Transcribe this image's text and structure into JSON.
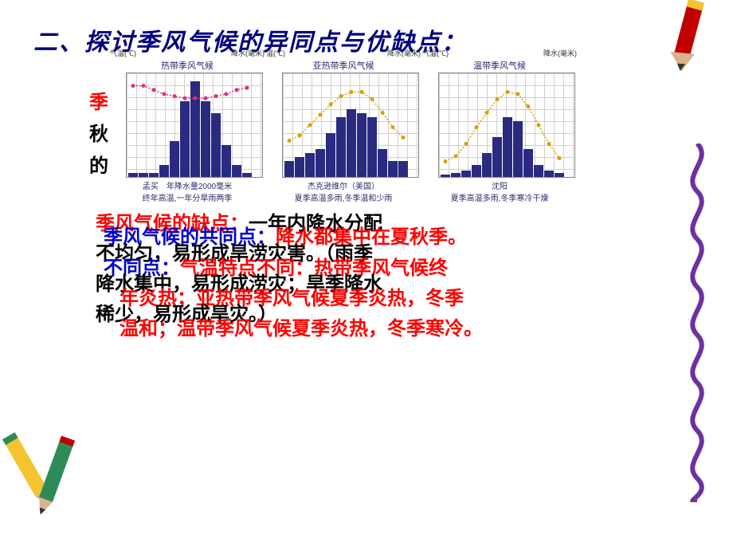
{
  "title": "二、探讨季风气候的异同点与优缺点：",
  "side_text": {
    "s1": "季",
    "s2": "秋",
    "s3": "的"
  },
  "charts": [
    {
      "title": "热带季风气候",
      "left_axis": "气温(℃)",
      "right_axis": "降水(毫米)",
      "location": "孟买",
      "caption": "年降水量2000毫米",
      "sub": "终年高温,一年分旱雨两季",
      "bars": [
        5,
        5,
        5,
        15,
        45,
        95,
        120,
        95,
        80,
        40,
        15,
        5
      ],
      "temp": [
        88,
        88,
        84,
        80,
        78,
        76,
        76,
        76,
        78,
        80,
        84,
        86
      ],
      "bar_color": "#2a2a80",
      "temp_color": "#d63384",
      "max_bar": 130
    },
    {
      "title": "亚热带季风气候",
      "left_axis": "温(℃)",
      "right_axis": "降水(毫米)",
      "location": "杰克逊维尔（美国）",
      "caption": "",
      "sub": "夏季高温多雨,冬季温和少雨",
      "bars": [
        20,
        25,
        30,
        35,
        55,
        75,
        85,
        80,
        75,
        35,
        20,
        20
      ],
      "temp": [
        35,
        40,
        50,
        60,
        70,
        78,
        82,
        82,
        75,
        62,
        48,
        38
      ],
      "bar_color": "#2a2a80",
      "temp_color": "#d6a100",
      "max_bar": 130
    },
    {
      "title": "温带季风气候",
      "left_axis": "气温(℃)",
      "right_axis": "降水(毫米)",
      "location": "沈阳",
      "caption": "",
      "sub": "夏季高温多雨,冬季寒冷干燥",
      "bars": [
        3,
        5,
        8,
        15,
        30,
        50,
        75,
        70,
        35,
        15,
        8,
        5
      ],
      "temp": [
        15,
        20,
        32,
        48,
        62,
        75,
        82,
        80,
        68,
        50,
        32,
        18
      ],
      "bar_color": "#2a2a80",
      "temp_color": "#d6a100",
      "max_bar": 130
    }
  ],
  "body": {
    "l1a": "季风气候的缺点：",
    "l1b": "一年内降水分配",
    "l2a": "季风气候的共同点：",
    "l2b": "降水都集中在夏秋季。",
    "l3": "不均匀，易形成旱涝灾害。（雨季",
    "l4a": "不同点：",
    "l4b": "气温特点不同：热带季风气候终",
    "l5": "降水集中，易形成涝灾；旱季降水",
    "l6": "年炎热；亚热带季风气候夏季炎热，冬季",
    "l7": "稀少，易形成旱灾。）",
    "l8": "温和；温带季风气候夏季炎热，冬季寒冷。"
  },
  "colors": {
    "title": "#000080",
    "red": "#ff0000",
    "blue": "#0000cc",
    "black": "#000000",
    "spiral": "#7030a0"
  }
}
